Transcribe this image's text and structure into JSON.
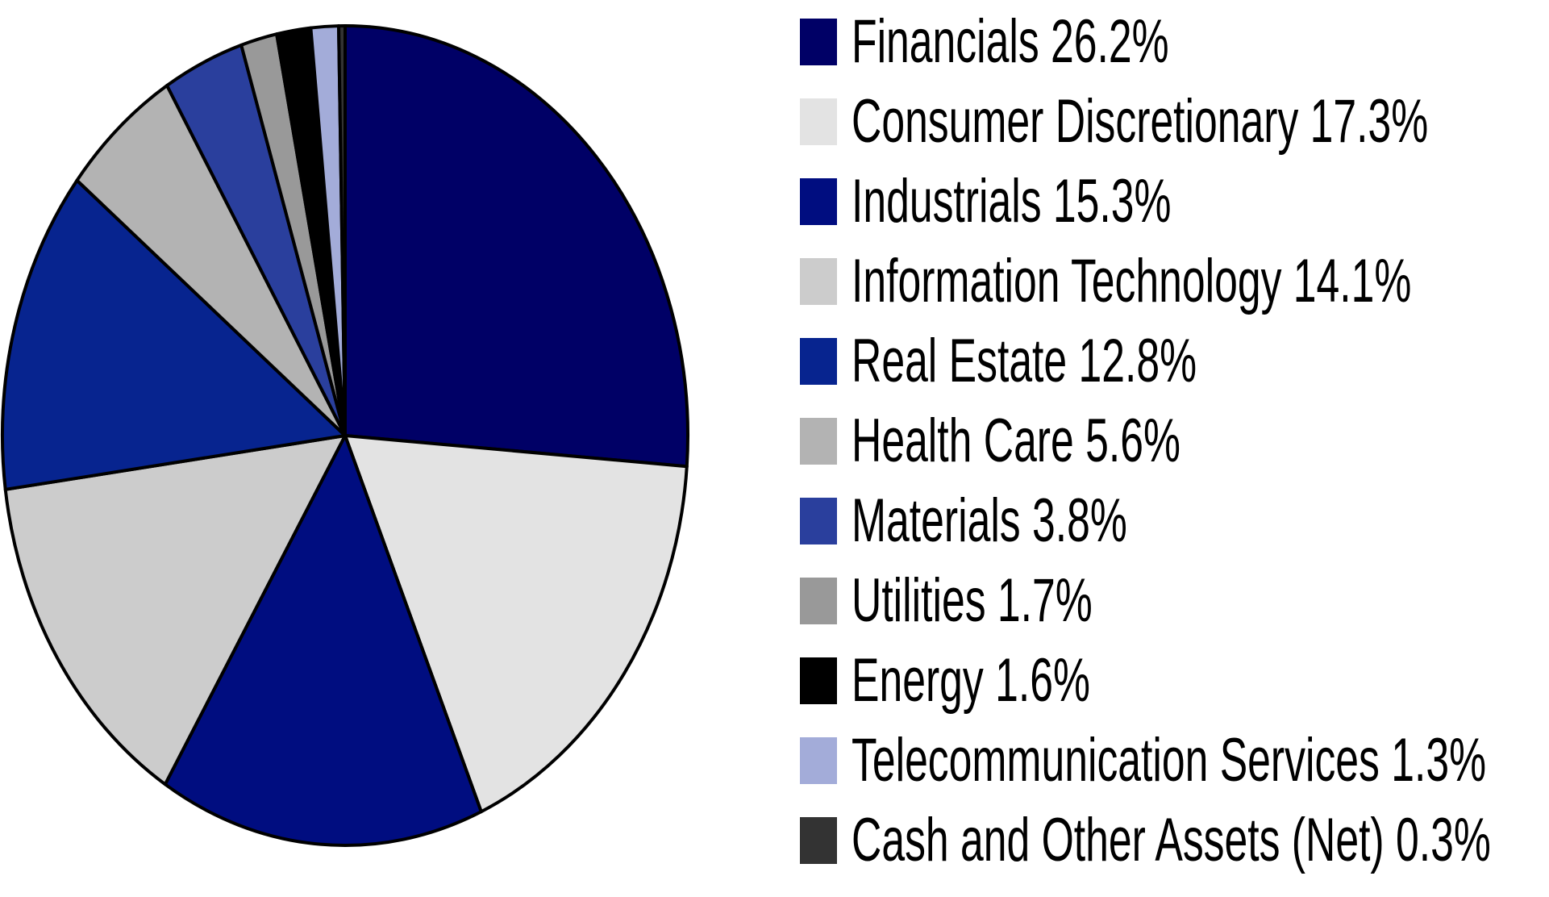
{
  "chart_data": {
    "type": "pie",
    "start_angle": "top",
    "direction": "clockwise",
    "legend_position": "right",
    "slices": [
      {
        "label": "Financials",
        "value": 26.2,
        "display": "Financials 26.2%",
        "color": "#000066"
      },
      {
        "label": "Consumer Discretionary",
        "value": 17.3,
        "display": "Consumer Discretionary 17.3%",
        "color": "#e3e3e3"
      },
      {
        "label": "Industrials",
        "value": 15.3,
        "display": "Industrials 15.3%",
        "color": "#000d80"
      },
      {
        "label": "Information Technology",
        "value": 14.1,
        "display": "Information Technology 14.1%",
        "color": "#cccccc"
      },
      {
        "label": "Real Estate",
        "value": 12.8,
        "display": "Real Estate 12.8%",
        "color": "#07248f"
      },
      {
        "label": "Health Care",
        "value": 5.6,
        "display": "Health Care 5.6%",
        "color": "#b3b3b3"
      },
      {
        "label": "Materials",
        "value": 3.8,
        "display": "Materials 3.8%",
        "color": "#2a3f9d"
      },
      {
        "label": "Utilities",
        "value": 1.7,
        "display": "Utilities 1.7%",
        "color": "#999999"
      },
      {
        "label": "Energy",
        "value": 1.6,
        "display": "Energy 1.6%",
        "color": "#000000"
      },
      {
        "label": "Telecommunication Services",
        "value": 1.3,
        "display": "Telecommunication Services 1.3%",
        "color": "#a3acd9"
      },
      {
        "label": "Cash and Other Assets (Net)",
        "value": 0.3,
        "display": "Cash and Other Assets (Net) 0.3%",
        "color": "#333333"
      }
    ]
  }
}
